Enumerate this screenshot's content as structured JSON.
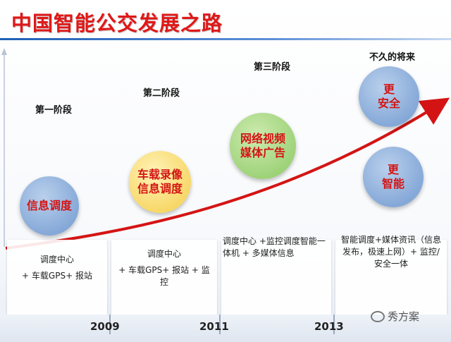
{
  "title": "中国智能公交发展之路",
  "phases": [
    {
      "label": "第一阶段",
      "bubbles": [
        [
          "信息调度"
        ]
      ],
      "desc": [
        "调度中心",
        "+ 车载GPS+ 报站"
      ]
    },
    {
      "label": "第二阶段",
      "bubbles": [
        [
          "车载录像",
          "信息调度"
        ]
      ],
      "desc": [
        "调度中心",
        "+ 车载GPS+ 报站 + 监控"
      ]
    },
    {
      "label": "第三阶段",
      "bubbles": [
        [
          "网络视频",
          "媒体广告"
        ]
      ],
      "desc": [
        "调度中心 +监控调度智能一体机 + 多媒体信息"
      ]
    },
    {
      "label": "不久的将来",
      "bubbles": [
        [
          "更",
          "安全"
        ],
        [
          "更",
          "智能"
        ]
      ],
      "desc": [
        "智能调度+媒体资讯（信息发布，极速上网）+ 监控/安全一体"
      ]
    }
  ],
  "years": [
    "2009",
    "2011",
    "2013"
  ],
  "watermark": "秀方案",
  "icons": {
    "watermark": "wechat-icon"
  },
  "colors": {
    "title": "#e01818",
    "arrow": "#d41414",
    "bubble_text": "#d41414"
  }
}
